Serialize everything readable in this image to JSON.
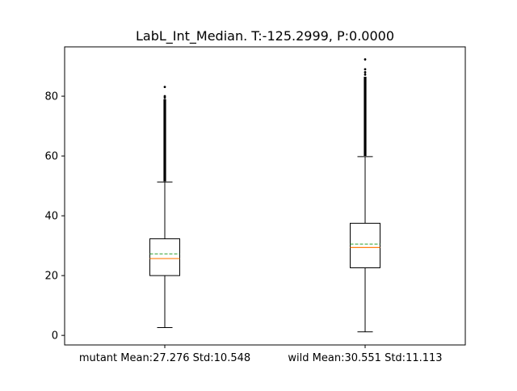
{
  "chart_data": {
    "type": "box",
    "title": "LabL_Int_Median. T:-125.2999, P:0.0000",
    "xlabel": "",
    "ylabel": "",
    "ylim": [
      -3.2,
      96.5
    ],
    "yticks": [
      0,
      20,
      40,
      60,
      80
    ],
    "grid": false,
    "colors": {
      "box": "#000000",
      "median": "#ff7f0e",
      "mean": "#2ca02c",
      "outlier": "#000000"
    },
    "groups": [
      {
        "label": "mutant Mean:27.276 Std:10.548",
        "whisker_low": 2.6,
        "q1": 20.0,
        "median": 25.7,
        "q3": 32.3,
        "whisker_high": 51.3,
        "mean": 27.276,
        "outliers_dense_range": [
          51.5,
          79.0
        ],
        "outliers_sparse": [
          79.5,
          80.0,
          83.1
        ]
      },
      {
        "label": "wild Mean:30.551 Std:11.113",
        "whisker_low": 1.2,
        "q1": 22.6,
        "median": 29.4,
        "q3": 37.5,
        "whisker_high": 59.8,
        "mean": 30.551,
        "outliers_dense_range": [
          60.0,
          86.5
        ],
        "outliers_sparse": [
          87.2,
          88.0,
          89.0,
          92.3
        ]
      }
    ]
  }
}
